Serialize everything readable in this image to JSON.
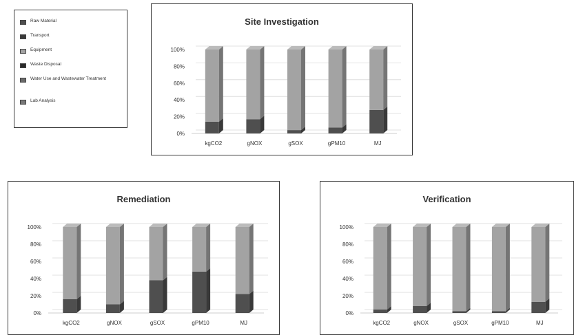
{
  "legend": {
    "items": [
      {
        "label": "Raw Material",
        "color": "#4f4f4f"
      },
      {
        "label": "Transport",
        "color": "#3a3a3a"
      },
      {
        "label": "Equipment",
        "color": "#a3a3a3"
      },
      {
        "label": "Waste Disposal",
        "color": "#2a2a2a"
      },
      {
        "label": "Water Use and Wastewater Treatment",
        "color": "#6a6a6a"
      },
      {
        "label": "Lab Analysis",
        "color": "#787878"
      }
    ]
  },
  "chart_data": [
    {
      "type": "bar",
      "stacked": true,
      "title": "Site Investigation",
      "categories": [
        "kgCO2",
        "gNOX",
        "gSOX",
        "gPM10",
        "MJ"
      ],
      "yticks": [
        "0%",
        "20%",
        "40%",
        "60%",
        "80%",
        "100%"
      ],
      "ylim": [
        0,
        100
      ],
      "series": [
        {
          "name": "Raw Material",
          "values": [
            14,
            17,
            4,
            7,
            28
          ]
        },
        {
          "name": "Equipment",
          "values": [
            86,
            83,
            96,
            93,
            72
          ]
        }
      ]
    },
    {
      "type": "bar",
      "stacked": true,
      "title": "Remediation",
      "categories": [
        "kgCO2",
        "gNOX",
        "gSOX",
        "gPM10",
        "MJ"
      ],
      "yticks": [
        "0%",
        "20%",
        "40%",
        "60%",
        "80%",
        "100%"
      ],
      "ylim": [
        0,
        100
      ],
      "series": [
        {
          "name": "Raw Material",
          "values": [
            16,
            10,
            38,
            48,
            22
          ]
        },
        {
          "name": "Equipment",
          "values": [
            84,
            90,
            62,
            52,
            78
          ]
        }
      ]
    },
    {
      "type": "bar",
      "stacked": true,
      "title": "Verification",
      "categories": [
        "kgCO2",
        "gNOX",
        "gSOX",
        "gPM10",
        "MJ"
      ],
      "yticks": [
        "0%",
        "20%",
        "40%",
        "60%",
        "80%",
        "100%"
      ],
      "ylim": [
        0,
        100
      ],
      "series": [
        {
          "name": "Raw Material",
          "values": [
            4,
            8,
            2,
            2,
            13
          ]
        },
        {
          "name": "Equipment",
          "values": [
            96,
            92,
            98,
            98,
            87
          ]
        }
      ]
    }
  ]
}
